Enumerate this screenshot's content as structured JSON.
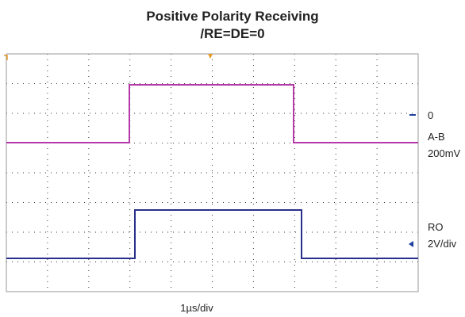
{
  "title": "Positive Polarity Receiving",
  "subtitle": "/RE=DE=0",
  "channel_a": {
    "offset": "0",
    "name": "A-B",
    "scale": "200mV"
  },
  "channel_b": {
    "name": "RO",
    "scale": "2V/div"
  },
  "timebase": "1µs/div"
}
